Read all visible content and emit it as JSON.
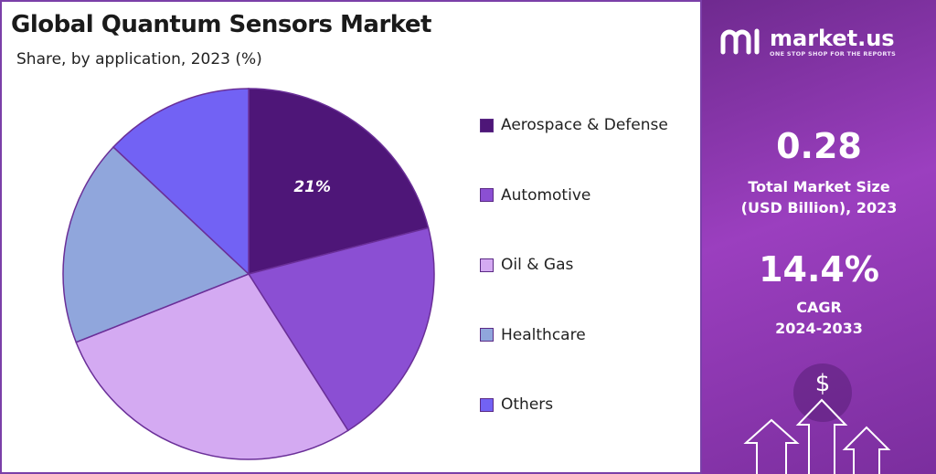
{
  "chart_data": {
    "type": "pie",
    "title": "Global Quantum Sensors Market",
    "subtitle": "Share, by application, 2023 (%)",
    "categories": [
      "Aerospace & Defense",
      "Automotive",
      "Oil & Gas",
      "Healthcare",
      "Others"
    ],
    "values": [
      21,
      20,
      28,
      18,
      13
    ],
    "data_labels": [
      "21%",
      "",
      "",
      "",
      ""
    ],
    "colors": [
      "#4e1678",
      "#8b4fd3",
      "#d4aaf2",
      "#90a6dc",
      "#7262f4"
    ],
    "legend_position": "right"
  },
  "sidebar": {
    "brand": "market.us",
    "tagline": "ONE STOP SHOP FOR THE REPORTS",
    "market_size_value": "0.28",
    "market_size_label_line1": "Total Market Size",
    "market_size_label_line2": "(USD Billion), 2023",
    "cagr_value": "14.4%",
    "cagr_label": "CAGR",
    "cagr_period": "2024-2033",
    "currency_symbol": "$"
  }
}
